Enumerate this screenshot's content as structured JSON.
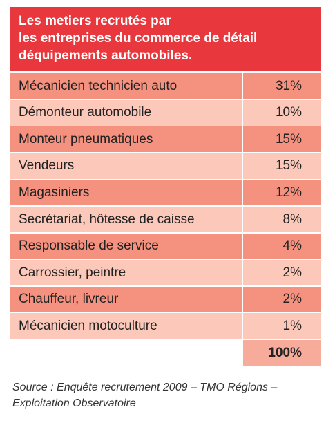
{
  "header": {
    "title_lines": [
      "Les metiers recrutés par",
      "les entreprises du commerce de détail",
      "déquipements automobiles."
    ]
  },
  "table": {
    "rows": [
      [
        "Mécanicien technicien auto",
        "31%"
      ],
      [
        "Démonteur automobile",
        "10%"
      ],
      [
        "Monteur pneumatiques",
        "15%"
      ],
      [
        "Vendeurs",
        "15%"
      ],
      [
        "Magasiniers",
        "12%"
      ],
      [
        "Secrétariat, hôtesse de caisse",
        "8%"
      ],
      [
        "Responsable de service",
        "4%"
      ],
      [
        "Carrossier, peintre",
        "2%"
      ],
      [
        "Chauffeur, livreur",
        "2%"
      ],
      [
        "Mécanicien motoculture",
        "1%"
      ]
    ],
    "total": "100%"
  },
  "source": {
    "lines": [
      "Source : Enquête recrutement 2009 – TMO Régions –",
      "Exploitation Observatoire"
    ]
  }
}
